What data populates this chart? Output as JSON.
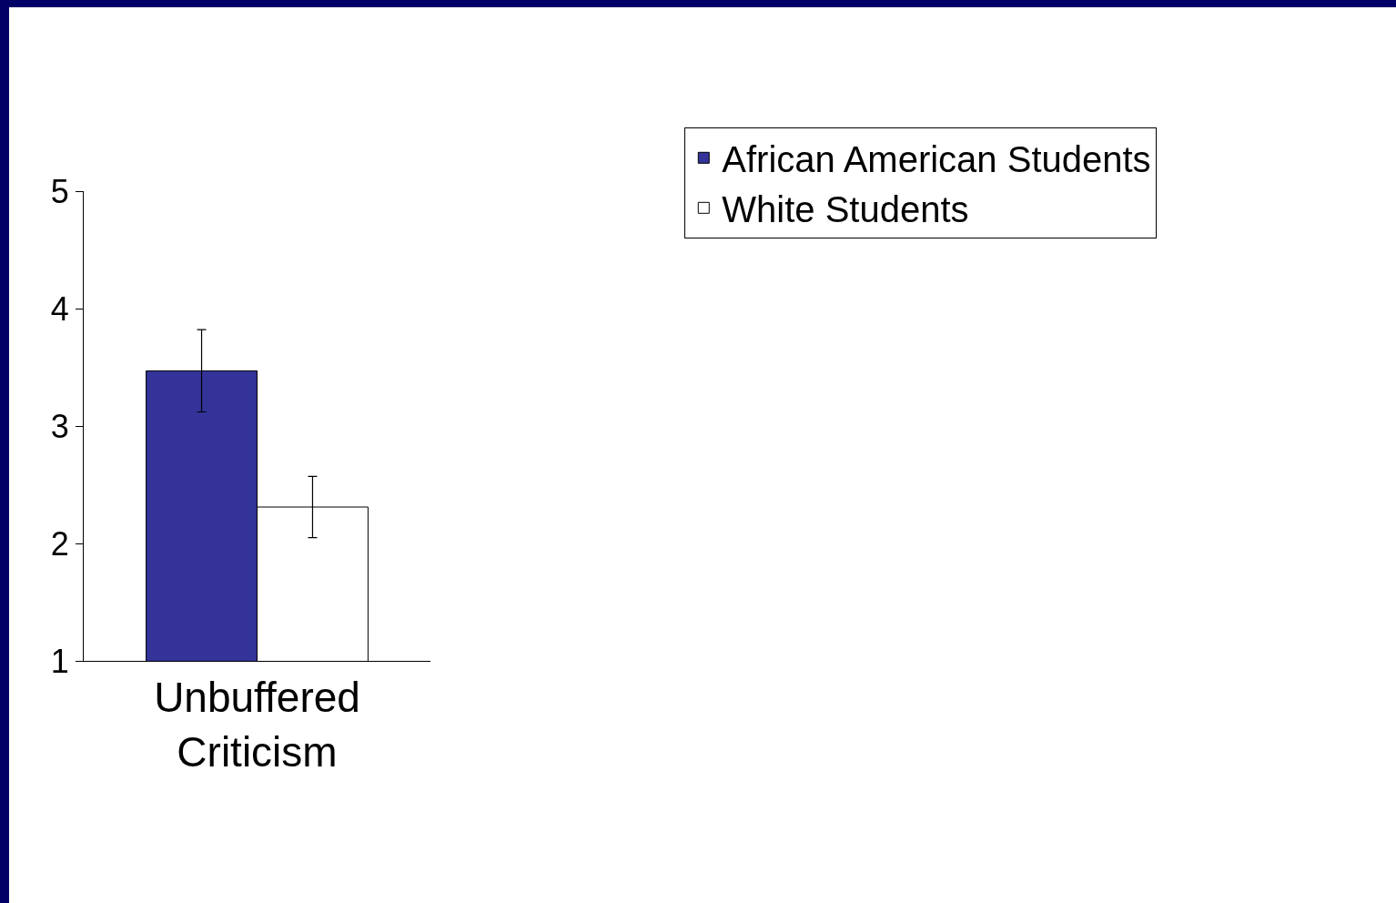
{
  "chart_data": {
    "type": "bar",
    "categories": [
      "Unbuffered\nCriticism"
    ],
    "series": [
      {
        "name": "African American Students",
        "color": "#333399",
        "values": [
          3.47
        ],
        "errors": [
          0.35
        ]
      },
      {
        "name": "White Students",
        "color": "#ffffff",
        "values": [
          2.31
        ],
        "errors": [
          0.26
        ]
      }
    ],
    "ylim": [
      1,
      5
    ],
    "yticks": [
      1,
      2,
      3,
      4,
      5
    ],
    "grid": false,
    "legend": "top right"
  }
}
